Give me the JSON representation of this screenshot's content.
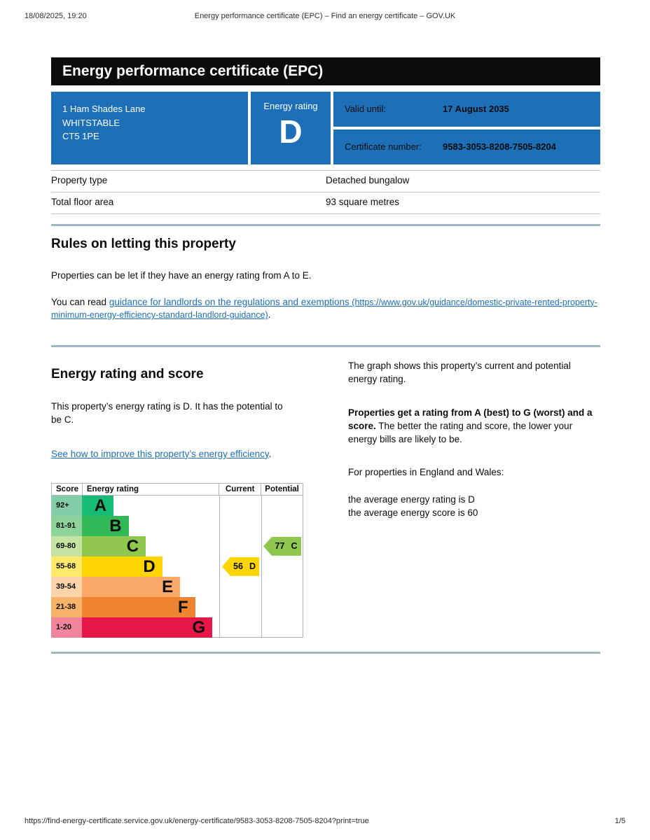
{
  "print_header": {
    "datetime": "18/08/2025, 19:20",
    "title": "Energy performance certificate (EPC) – Find an energy certificate – GOV.UK"
  },
  "banner": {
    "title": "Energy performance certificate (EPC)"
  },
  "summary": {
    "address_line1": "1 Ham Shades Lane",
    "address_line2": "WHITSTABLE",
    "address_line3": "CT5 1PE",
    "energy_rating_label": "Energy rating",
    "energy_rating": "D",
    "valid_until_label": "Valid until:",
    "valid_until": "17 August 2035",
    "certificate_number_label": "Certificate number:",
    "certificate_number": "9583-3053-8208-7505-8204"
  },
  "property_table": {
    "rows": [
      {
        "label": "Property type",
        "value": "Detached bungalow"
      },
      {
        "label": "Total floor area",
        "value": "93 square metres"
      }
    ]
  },
  "rules_section": {
    "heading": "Rules on letting this property",
    "para1": "Properties can be let if they have an energy rating from A to E.",
    "read_prefix": "You can read ",
    "link_text": "guidance for landlords on the regulations and exemptions",
    "link_url_text": " (https://www.gov.uk/guidance/domestic-private-rented-property-minimum-energy-efficiency-standard-landlord-guidance)",
    "read_suffix": "."
  },
  "rating_section": {
    "heading": "Energy rating and score",
    "intro": "This property’s energy rating is D. It has the potential to be C.",
    "improve_link": "See how to improve this property’s energy efficiency",
    "improve_suffix": ".",
    "right_para1": "The graph shows this property’s current and potential energy rating.",
    "right_para2_bold": "Properties get a rating from A (best) to G (worst) and a score.",
    "right_para2_rest": " The better the rating and score, the lower your energy bills are likely to be.",
    "right_para3": "For properties in England and Wales:",
    "average_rating_line": "the average energy rating is D",
    "average_score_line": "the average energy score is 60"
  },
  "chart_data": {
    "type": "bar",
    "title": "Energy rating and score graph",
    "columns": [
      "Score",
      "Energy rating",
      "Current",
      "Potential"
    ],
    "bands": [
      {
        "score": "92+",
        "letter": "A",
        "color": "#16bc74",
        "score_color": "#82cda8",
        "width_pct": 23
      },
      {
        "score": "81-91",
        "letter": "B",
        "color": "#31b857",
        "score_color": "#8ed39a",
        "width_pct": 34
      },
      {
        "score": "69-80",
        "letter": "C",
        "color": "#8fc64d",
        "score_color": "#c7e3a2",
        "width_pct": 46.5
      },
      {
        "score": "55-68",
        "letter": "D",
        "color": "#fed401",
        "score_color": "#fee96b",
        "width_pct": 58.5
      },
      {
        "score": "39-54",
        "letter": "E",
        "color": "#fba969",
        "score_color": "#fdd3a9",
        "width_pct": 71.5
      },
      {
        "score": "21-38",
        "letter": "F",
        "color": "#ef8430",
        "score_color": "#f7b269",
        "width_pct": 82.5
      },
      {
        "score": "1-20",
        "letter": "G",
        "color": "#e8174a",
        "score_color": "#f2859c",
        "width_pct": 95
      }
    ],
    "current": {
      "score": 56,
      "band": "D",
      "color": "#fed401",
      "row_index": 3
    },
    "potential": {
      "score": 77,
      "band": "C",
      "color": "#8fc64d",
      "row_index": 2
    }
  },
  "colors": {
    "govuk_blue": "#1d70b8",
    "banner_black": "#0b0c0c",
    "link_blue": "#1d70b8",
    "section_divider": "#a0b6c4"
  },
  "print_footer": {
    "url": "https://find-energy-certificate.service.gov.uk/energy-certificate/9583-3053-8208-7505-8204?print=true",
    "page": "1/5"
  }
}
